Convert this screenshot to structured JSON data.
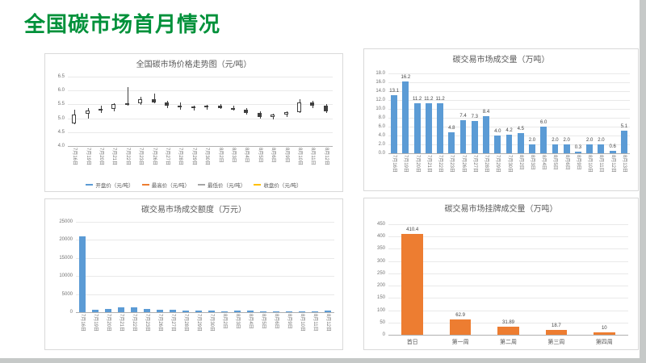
{
  "page": {
    "title": "全国碳市场首月情况"
  },
  "colors": {
    "title_green": "#00913a",
    "bar_blue": "#5b9bd5",
    "bar_orange": "#ed7d31",
    "candle": "#404040",
    "grid": "#e9e9e9",
    "text_gray": "#595959"
  },
  "chart_data": [
    {
      "id": "price",
      "type": "candlestick",
      "title": "全国碳市场价格走势图（元/吨）",
      "categories": [
        "7月16日",
        "7月19日",
        "7月20日",
        "7月21日",
        "7月22日",
        "7月23日",
        "7月26日",
        "7月27日",
        "7月28日",
        "7月29日",
        "7月30日",
        "8月2日",
        "8月3日",
        "8月4日",
        "8月5日",
        "8月6日",
        "8月9日",
        "8月10日",
        "8月11日",
        "8月12日"
      ],
      "ohlc": [
        [
          4.8,
          5.3,
          4.78,
          5.12
        ],
        [
          5.15,
          5.38,
          5.0,
          5.28
        ],
        [
          5.28,
          5.45,
          5.2,
          5.33
        ],
        [
          5.33,
          5.55,
          5.25,
          5.5
        ],
        [
          5.5,
          6.12,
          5.45,
          5.55
        ],
        [
          5.55,
          5.78,
          5.48,
          5.7
        ],
        [
          5.7,
          5.88,
          5.55,
          5.58
        ],
        [
          5.58,
          5.63,
          5.38,
          5.45
        ],
        [
          5.45,
          5.56,
          5.3,
          5.39
        ],
        [
          5.39,
          5.46,
          5.27,
          5.43
        ],
        [
          5.43,
          5.49,
          5.3,
          5.45
        ],
        [
          5.45,
          5.51,
          5.34,
          5.38
        ],
        [
          5.38,
          5.44,
          5.27,
          5.31
        ],
        [
          5.31,
          5.37,
          5.12,
          5.18
        ],
        [
          5.18,
          5.24,
          4.99,
          5.04
        ],
        [
          5.04,
          5.16,
          4.97,
          5.12
        ],
        [
          5.12,
          5.26,
          5.05,
          5.23
        ],
        [
          5.23,
          5.68,
          5.2,
          5.56
        ],
        [
          5.56,
          5.62,
          5.38,
          5.44
        ],
        [
          5.44,
          5.52,
          5.18,
          5.25
        ]
      ],
      "ylim": [
        4.0,
        6.5
      ],
      "y_tick_labels": [
        "6.5",
        "6.0",
        "5.5",
        "5.0",
        "4.5",
        "4.0"
      ],
      "legend": [
        {
          "label": "开盘价（元/吨）",
          "color": "#5b9bd5"
        },
        {
          "label": "最高价（元/吨）",
          "color": "#ed7d31"
        },
        {
          "label": "最低价（元/吨）",
          "color": "#a5a5a5"
        },
        {
          "label": "收盘价（元/吨）",
          "color": "#ffc000"
        }
      ]
    },
    {
      "id": "volume",
      "type": "bar",
      "title": "碳交易市场成交量（万吨）",
      "categories": [
        "7月16日",
        "7月19日",
        "7月20日",
        "7月21日",
        "7月22日",
        "7月23日",
        "7月26日",
        "7月27日",
        "7月28日",
        "7月29日",
        "7月30日",
        "8月2日",
        "8月3日",
        "8月4日",
        "8月5日",
        "8月6日",
        "8月9日",
        "8月10日",
        "8月11日",
        "8月12日",
        "8月13日"
      ],
      "values": [
        13.1,
        16.2,
        11.2,
        11.2,
        11.2,
        4.8,
        7.4,
        7.3,
        8.4,
        4.0,
        4.2,
        4.5,
        2.0,
        6.0,
        2.0,
        2.0,
        0.3,
        2.0,
        2.0,
        0.6,
        5.1
      ],
      "labels": [
        "13.1",
        "16.2",
        "11.2",
        "11.2",
        "11.2",
        "4.8",
        "7.4",
        "7.3",
        "8.4",
        "4.0",
        "4.2",
        "4.5",
        "2.0",
        "6.0",
        "2.0",
        "2.0",
        "0.3",
        "2.0",
        "2.0",
        "0.6",
        "5.1"
      ],
      "ylim": [
        0,
        18
      ],
      "y_tick_labels": [
        "18.0",
        "16.0",
        "14.0",
        "12.0",
        "10.0",
        "8.0",
        "6.0",
        "4.0",
        "2.0",
        "0.0"
      ],
      "bar_color": "#5b9bd5",
      "show_labels": true
    },
    {
      "id": "turnover",
      "type": "bar",
      "title": "碳交易市场成交额度（万元）",
      "categories": [
        "7月16日",
        "7月19日",
        "7月20日",
        "7月21日",
        "7月22日",
        "7月23日",
        "7月26日",
        "7月27日",
        "7月28日",
        "7月29日",
        "7月30日",
        "8月2日",
        "8月3日",
        "8月4日",
        "8月5日",
        "8月6日",
        "8月9日",
        "8月10日",
        "8月11日",
        "8月12日"
      ],
      "values": [
        21000,
        760,
        950,
        1260,
        1420,
        930,
        640,
        560,
        500,
        430,
        390,
        330,
        540,
        380,
        310,
        270,
        190,
        330,
        270,
        430
      ],
      "labels": [],
      "ylim": [
        0,
        25000
      ],
      "y_tick_labels": [
        "25000",
        "20000",
        "15000",
        "10000",
        "5000",
        "0"
      ],
      "bar_color": "#5b9bd5",
      "show_labels": false
    },
    {
      "id": "listed",
      "type": "bar",
      "title": "碳交易市场挂牌成交量（万吨）",
      "categories": [
        "首日",
        "第一周",
        "第二周",
        "第三周",
        "第四周"
      ],
      "values": [
        410.4,
        62.9,
        31.89,
        18.7,
        10
      ],
      "labels": [
        "410.4",
        "62.9",
        "31.89",
        "18.7",
        "10"
      ],
      "ylim": [
        0,
        450
      ],
      "y_tick_labels": [
        "450",
        "400",
        "350",
        "300",
        "250",
        "200",
        "150",
        "100",
        "50",
        "0"
      ],
      "bar_color": "#ed7d31",
      "show_labels": true,
      "flat_xlabels": true
    }
  ]
}
